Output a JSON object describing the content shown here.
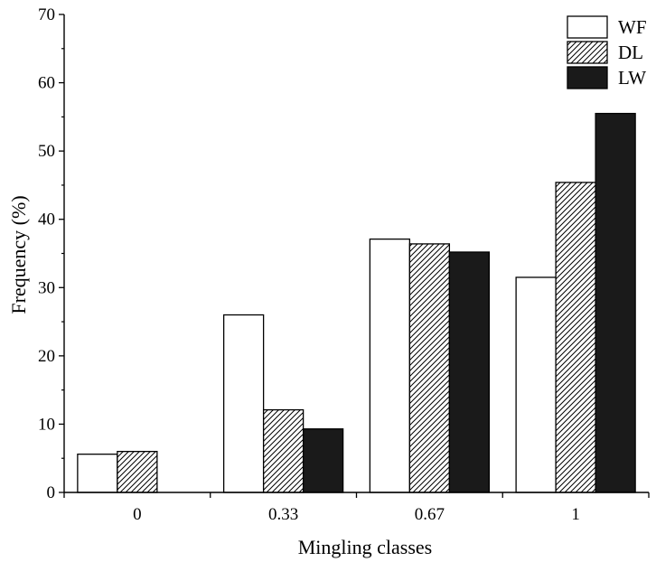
{
  "chart_data": {
    "type": "bar",
    "categories": [
      "0",
      "0.33",
      "0.67",
      "1"
    ],
    "series": [
      {
        "name": "WF",
        "values": [
          5.6,
          26.0,
          37.1,
          31.5
        ],
        "fill": "white"
      },
      {
        "name": "DL",
        "values": [
          6.0,
          12.1,
          36.4,
          45.4
        ],
        "fill": "hatch"
      },
      {
        "name": "LW",
        "values": [
          0,
          9.3,
          35.2,
          55.5
        ],
        "fill": "#1a1a1a"
      }
    ],
    "xlabel": "Mingling classes",
    "ylabel": "Frequency (%)",
    "ylim": [
      0,
      70
    ],
    "yticks": [
      0,
      10,
      20,
      30,
      40,
      50,
      60,
      70
    ],
    "grid": false,
    "legend_position": "top-right"
  }
}
